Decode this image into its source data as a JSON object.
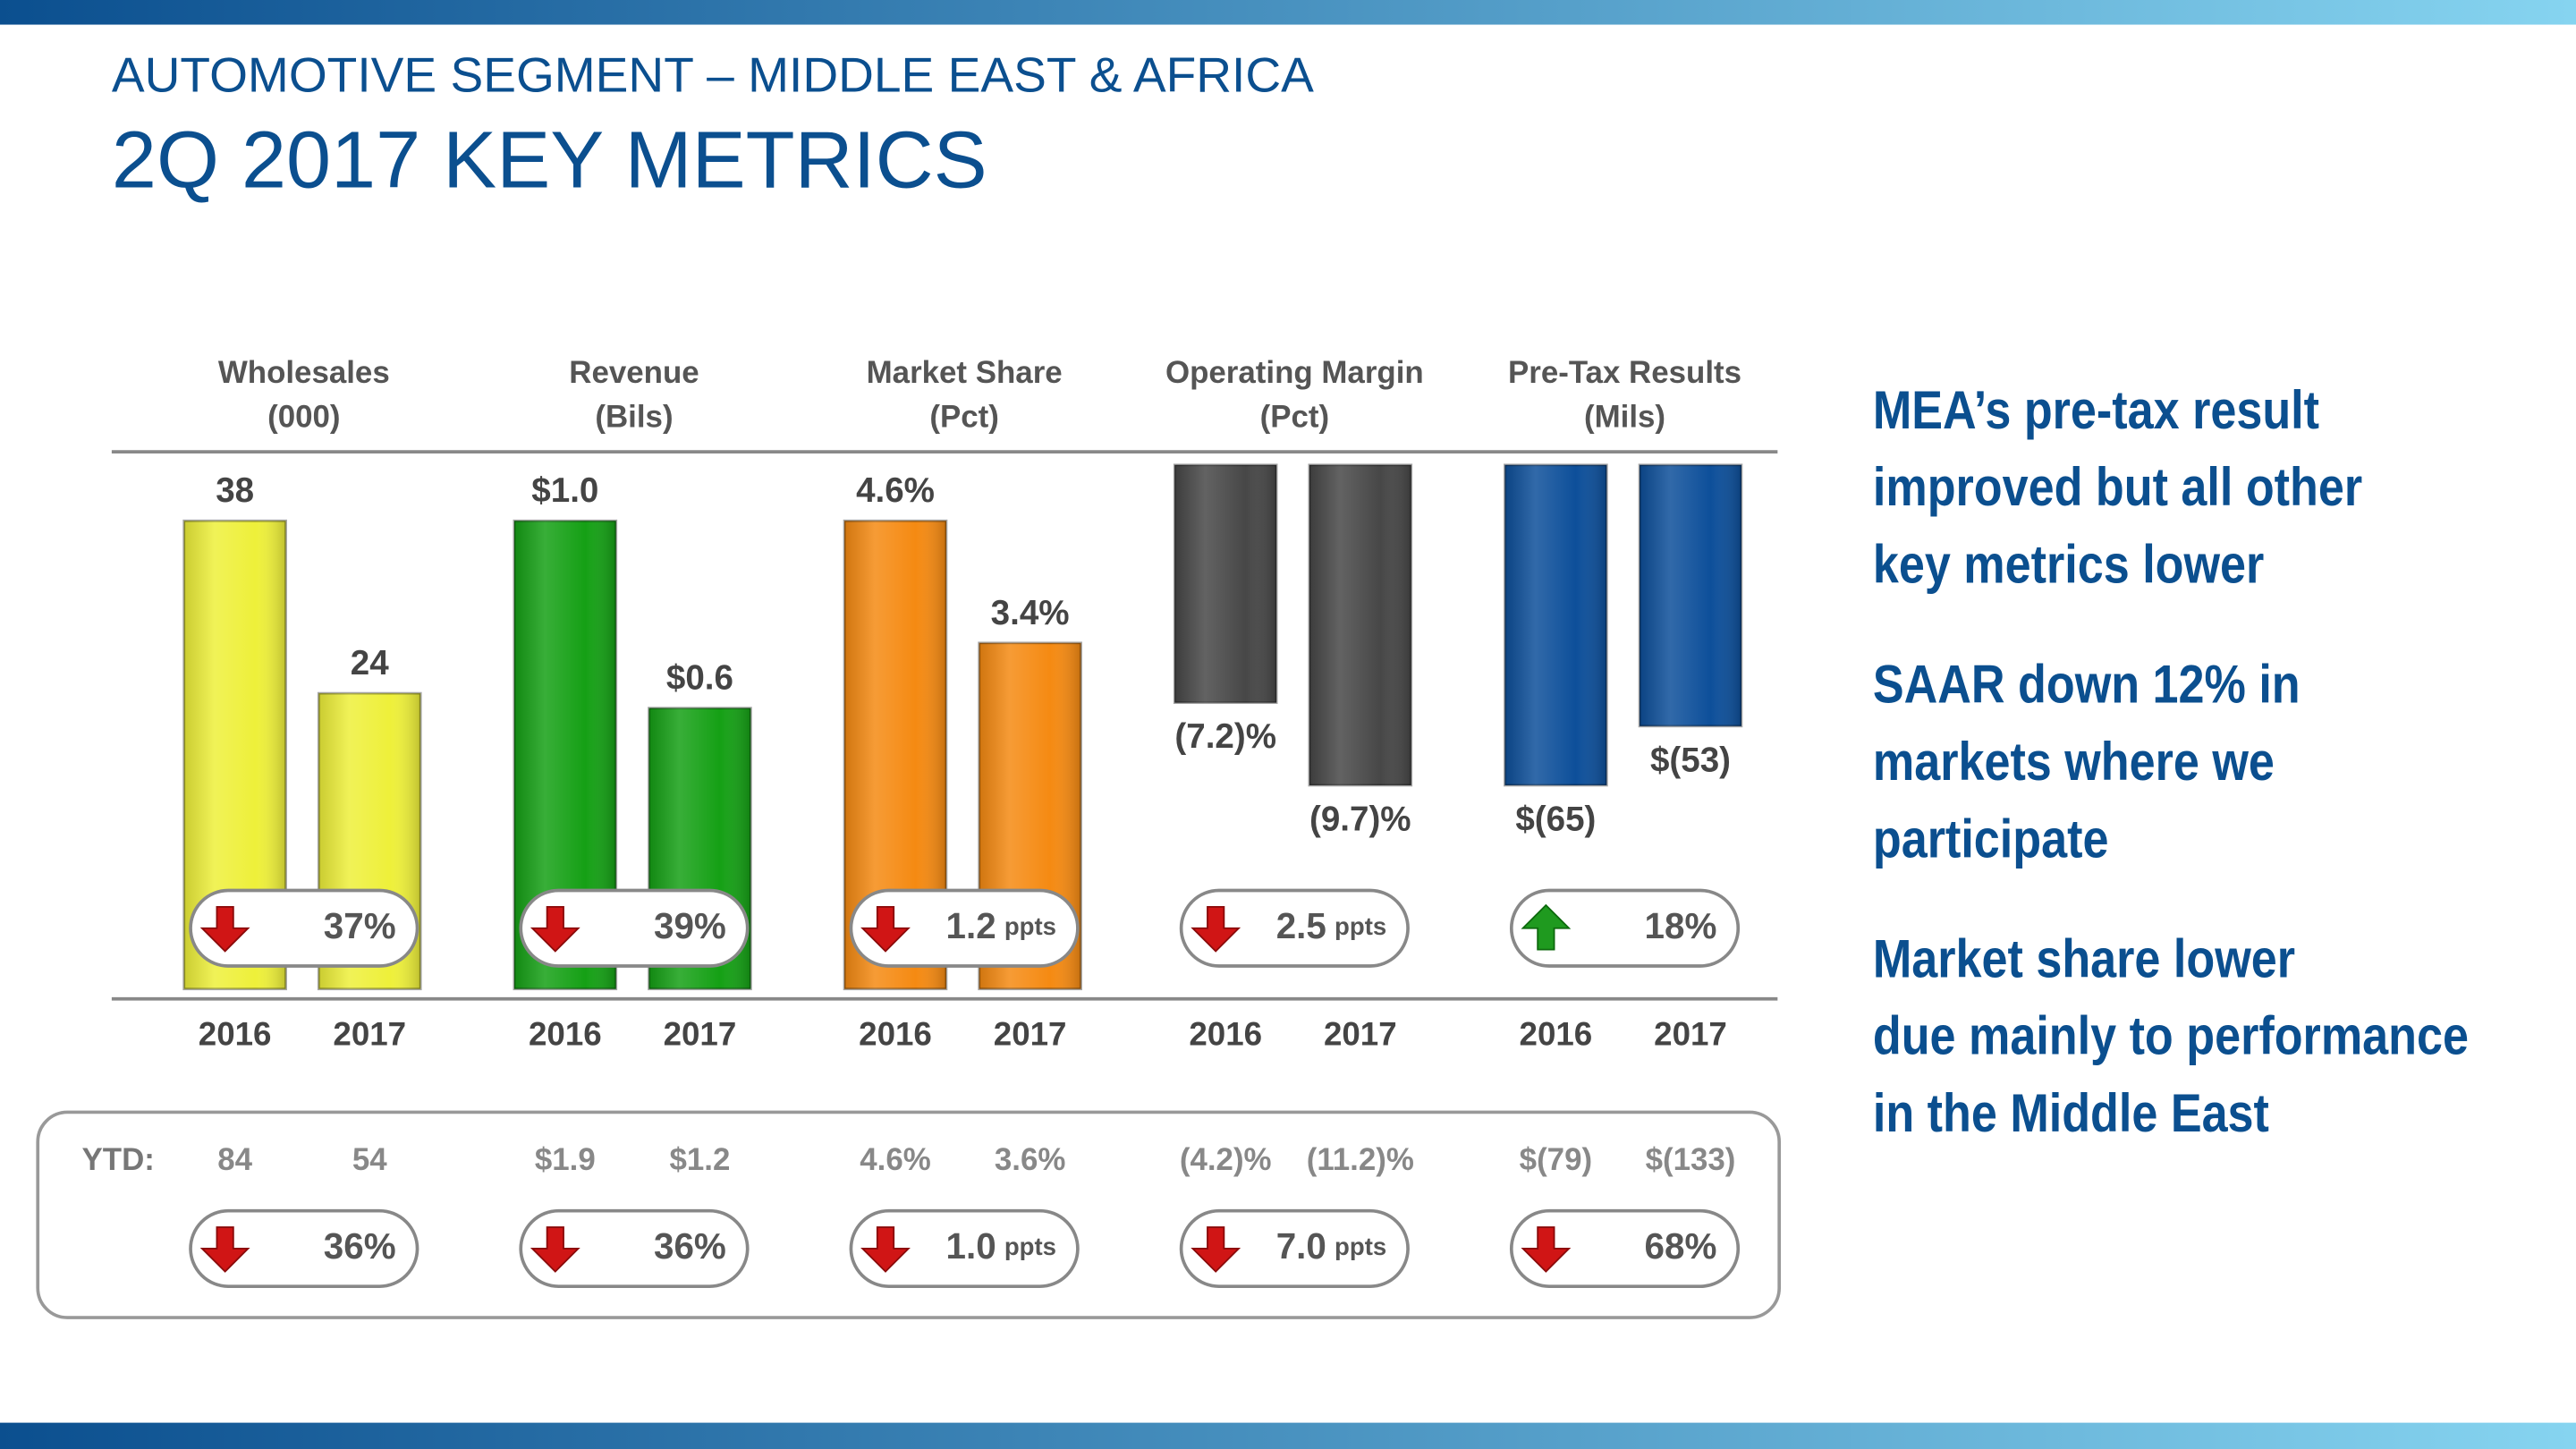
{
  "header": {
    "subtitle": "AUTOMOTIVE SEGMENT – MIDDLE EAST & AFRICA",
    "title": "2Q 2017 KEY METRICS"
  },
  "chart_data": [
    {
      "type": "bar",
      "title": "Wholesales",
      "subtitle": "(000)",
      "categories": [
        "2016",
        "2017"
      ],
      "values": [
        38,
        24
      ],
      "color": "#eef03a",
      "change": "37%",
      "change_direction": "down",
      "ytd_labels": [
        "84",
        "54"
      ],
      "ytd_change": "36%",
      "ytd_change_direction": "down"
    },
    {
      "type": "bar",
      "title": "Revenue",
      "subtitle": "(Bils)",
      "categories": [
        "2016",
        "2017"
      ],
      "values": [
        1.0,
        0.6
      ],
      "value_labels": [
        "$1.0",
        "$0.6"
      ],
      "color": "#15a015",
      "change": "39%",
      "change_direction": "down",
      "ytd_labels": [
        "$1.9",
        "$1.2"
      ],
      "ytd_change": "36%",
      "ytd_change_direction": "down"
    },
    {
      "type": "bar",
      "title": "Market Share",
      "subtitle": "(Pct)",
      "categories": [
        "2016",
        "2017"
      ],
      "values": [
        4.6,
        3.4
      ],
      "value_labels": [
        "4.6%",
        "3.4%"
      ],
      "color": "#f58a12",
      "change": "1.2",
      "change_unit": "ppts",
      "change_direction": "down",
      "ytd_labels": [
        "4.6%",
        "3.6%"
      ],
      "ytd_change": "1.0",
      "ytd_change_unit": "ppts",
      "ytd_change_direction": "down"
    },
    {
      "type": "bar",
      "title": "Operating Margin",
      "subtitle": "(Pct)",
      "categories": [
        "2016",
        "2017"
      ],
      "values": [
        -7.2,
        -9.7
      ],
      "value_labels": [
        "(7.2)%",
        "(9.7)%"
      ],
      "color": "#474747",
      "change": "2.5",
      "change_unit": "ppts",
      "change_direction": "down",
      "ytd_labels": [
        "(4.2)%",
        "(11.2)%"
      ],
      "ytd_change": "7.0",
      "ytd_change_unit": "ppts",
      "ytd_change_direction": "down"
    },
    {
      "type": "bar",
      "title": "Pre-Tax Results",
      "subtitle": "(Mils)",
      "categories": [
        "2016",
        "2017"
      ],
      "values": [
        -65,
        -53
      ],
      "value_labels": [
        "$(65)",
        "$(53)"
      ],
      "color": "#0d4f9a",
      "change": "18%",
      "change_direction": "up",
      "ytd_labels": [
        "$(79)",
        "$(133)"
      ],
      "ytd_change": "68%",
      "ytd_change_direction": "down"
    }
  ],
  "ytd_label": "YTD:",
  "notes": [
    [
      "MEA’s pre-tax result",
      "improved but all other",
      "key metrics lower"
    ],
    [
      "SAAR down 12% in",
      "markets where we",
      "participate"
    ],
    [
      "Market share lower",
      "due mainly to performance",
      "in the Middle East"
    ]
  ]
}
